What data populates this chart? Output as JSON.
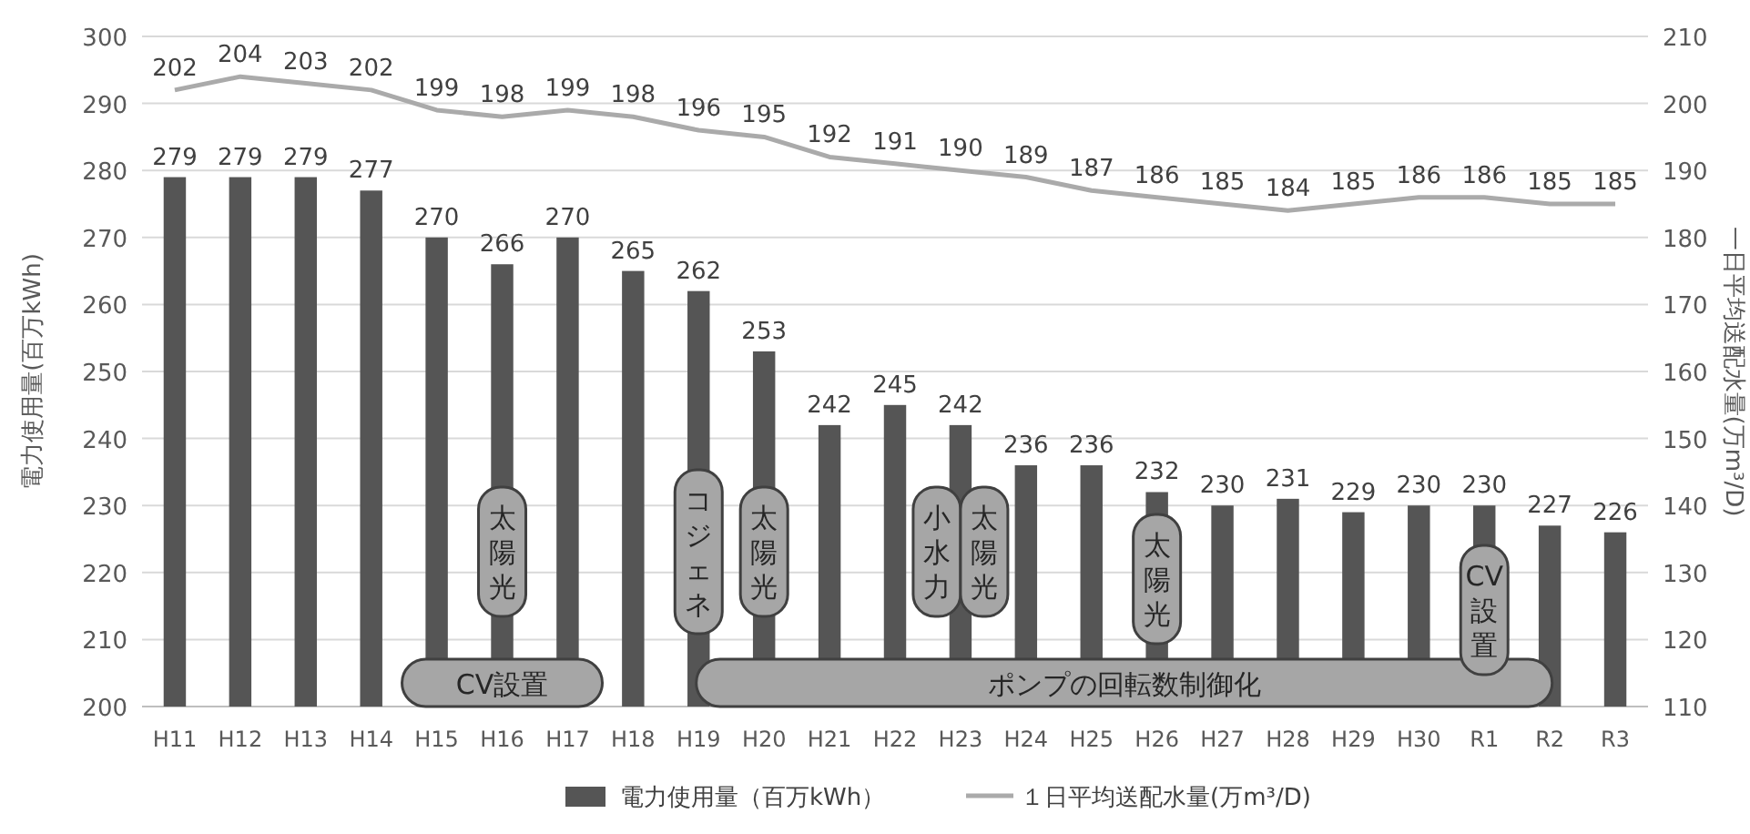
{
  "chart_data": {
    "type": "bar",
    "ylabel": "電力使用量(百万kWh)",
    "y2label": "一日平均送配水量(万m³/D)",
    "categories": [
      "H11",
      "H12",
      "H13",
      "H14",
      "H15",
      "H16",
      "H17",
      "H18",
      "H19",
      "H20",
      "H21",
      "H22",
      "H23",
      "H24",
      "H25",
      "H26",
      "H27",
      "H28",
      "H29",
      "H30",
      "R1",
      "R2",
      "R3"
    ],
    "series": [
      {
        "name": "電力使用量（百万kWh）",
        "color": "#555555",
        "values": [
          279,
          279,
          279,
          277,
          270,
          266,
          270,
          265,
          262,
          253,
          242,
          245,
          242,
          236,
          236,
          232,
          230,
          231,
          229,
          230,
          230,
          227,
          226
        ]
      },
      {
        "name": "１日平均送配水量(万m³/D)",
        "type": "line",
        "axis": "y2",
        "color": "#aaaaaa",
        "values": [
          202,
          204,
          203,
          202,
          199,
          198,
          199,
          198,
          196,
          195,
          192,
          191,
          190,
          189,
          187,
          186,
          185,
          184,
          185,
          186,
          186,
          185,
          185
        ]
      }
    ],
    "ylim": [
      200,
      300
    ],
    "yticks": [
      200,
      210,
      220,
      230,
      240,
      250,
      260,
      270,
      280,
      290,
      300
    ],
    "y2lim": [
      110,
      210
    ],
    "y2ticks": [
      110,
      120,
      130,
      140,
      150,
      160,
      170,
      180,
      190,
      200,
      210
    ],
    "grid": "y",
    "legend": "bottom",
    "data_labels": true,
    "marker": "none",
    "annotations": [
      "CV設置",
      "太陽光",
      "コジェネ",
      "太陽光",
      "小水力",
      "太陽光",
      "太陽光",
      "ポンプの回転数制御化",
      "CV設置"
    ]
  }
}
